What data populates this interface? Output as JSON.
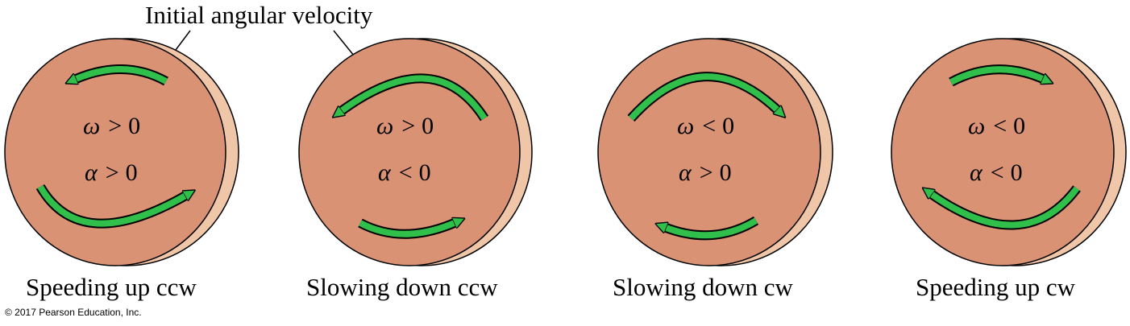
{
  "header_label": "Initial angular velocity",
  "colors": {
    "disk_face": "#d99274",
    "disk_rim": "#f0c6a8",
    "arrow_fill": "#2fbf4a",
    "outline": "#000000"
  },
  "panels": [
    {
      "omega_symbol": "ω",
      "omega_rel": ">",
      "omega_value": "0",
      "alpha_symbol": "α",
      "alpha_rel": ">",
      "alpha_value": "0",
      "caption": "Speeding up ccw"
    },
    {
      "omega_symbol": "ω",
      "omega_rel": ">",
      "omega_value": "0",
      "alpha_symbol": "α",
      "alpha_rel": "<",
      "alpha_value": "0",
      "caption": "Slowing down ccw"
    },
    {
      "omega_symbol": "ω",
      "omega_rel": "<",
      "omega_value": "0",
      "alpha_symbol": "α",
      "alpha_rel": ">",
      "alpha_value": "0",
      "caption": "Slowing down cw"
    },
    {
      "omega_symbol": "ω",
      "omega_rel": "<",
      "omega_value": "0",
      "alpha_symbol": "α",
      "alpha_rel": "<",
      "alpha_value": "0",
      "caption": "Speeding up cw"
    }
  ],
  "copyright": "© 2017 Pearson Education, Inc."
}
